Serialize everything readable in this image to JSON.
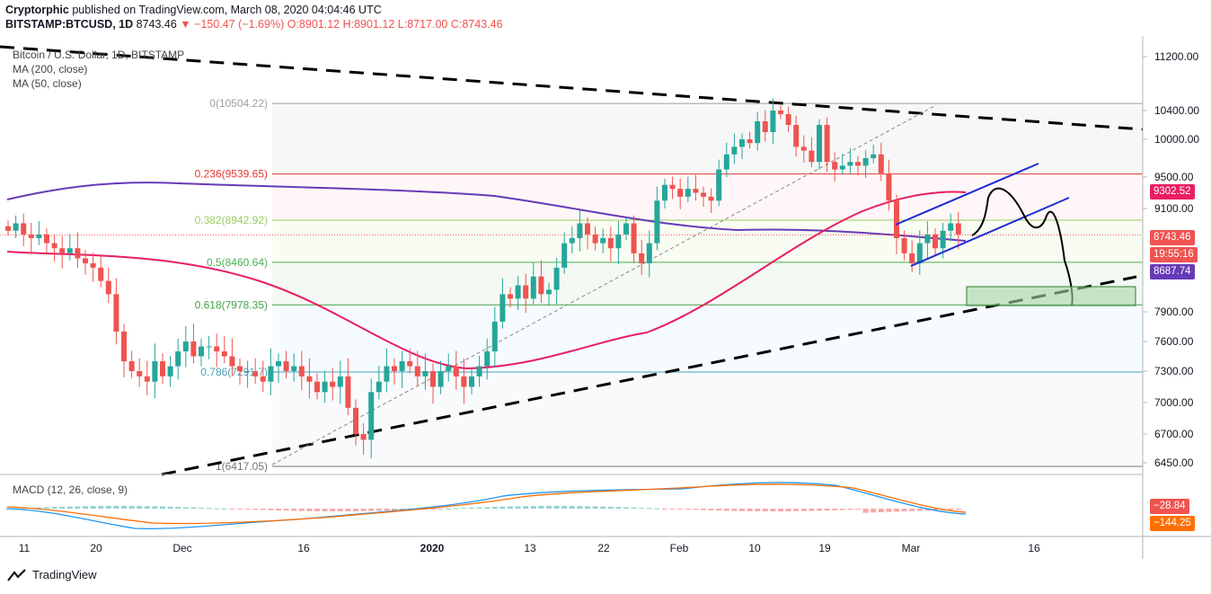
{
  "header": {
    "line1_author": "Cryptorphic",
    "line1_rest": " published on TradingView.com, March 08, 2020 04:04:46 UTC",
    "symbol": "BITSTAMP:BTCUSD, 1D",
    "last": "8743.46",
    "change": "−150.47 (−1.69%)",
    "open": "O:8901.12",
    "high": "H:8901.12",
    "low": "L:8717.00",
    "close": "C:8743.46"
  },
  "legend": {
    "title": "Bitcoin / U.S. Dollar, 1D, BITSTAMP",
    "ma200": "MA (200, close)",
    "ma50": "MA (50, close)"
  },
  "macd_label": "MACD (12, 26, close, 9)",
  "branding": "TradingView",
  "price_tags": {
    "ma50": "9302.52",
    "last": "8743.46",
    "countdown": "19:55:16",
    "ma200": "8687.74",
    "macd_hist": "−28.84",
    "macd_signal": "−144.25"
  },
  "colors": {
    "up": "#26a69a",
    "down": "#ef5350",
    "ma200": "#673ab7",
    "ma50": "#e91e63",
    "channel": "#1e2dd6",
    "target_zone": "#a5d6a7"
  },
  "chart_data": {
    "type": "candlestick",
    "symbol": "BTCUSD",
    "timeframe": "1D",
    "y_axis_ticks": [
      11200,
      10400,
      10000,
      9500,
      9100,
      7900,
      7600,
      7300,
      7000,
      6700,
      6450
    ],
    "x_axis_ticks": [
      "11",
      "20",
      "Dec",
      "16",
      "2020",
      "13",
      "22",
      "Feb",
      "10",
      "19",
      "Mar",
      "16"
    ],
    "fibonacci": [
      {
        "label": "0(10504.22)",
        "level": 0,
        "price": 10504.22,
        "color": "#9e9e9e"
      },
      {
        "label": "0.236(9539.65)",
        "level": 0.236,
        "price": 9539.65,
        "color": "#e53935"
      },
      {
        "label": "0.382(8942.92)",
        "level": 0.382,
        "price": 8942.92,
        "color": "#9ccc65"
      },
      {
        "label": "0.5(8460.64)",
        "level": 0.5,
        "price": 8460.64,
        "color": "#4caf50"
      },
      {
        "label": "0.618(7978.35)",
        "level": 0.618,
        "price": 7978.35,
        "color": "#43a047"
      },
      {
        "label": "0.786(7291.7)",
        "level": 0.786,
        "price": 7291.7,
        "color": "#4aa3b5"
      },
      {
        "label": "1(6417.05)",
        "level": 1,
        "price": 6417.05,
        "color": "#757575"
      }
    ],
    "candles_close_approx": [
      8800,
      8900,
      8750,
      8700,
      8750,
      8650,
      8600,
      8550,
      8600,
      8500,
      8450,
      8400,
      8250,
      8100,
      7700,
      7400,
      7300,
      7250,
      7200,
      7400,
      7250,
      7350,
      7500,
      7600,
      7450,
      7550,
      7550,
      7500,
      7450,
      7350,
      7300,
      7300,
      7250,
      7200,
      7350,
      7400,
      7300,
      7350,
      7250,
      7200,
      7100,
      7200,
      7150,
      7250,
      6950,
      6700,
      6650,
      7100,
      7200,
      7350,
      7300,
      7400,
      7350,
      7250,
      7300,
      7150,
      7300,
      7350,
      7250,
      7150,
      7250,
      7350,
      7500,
      7800,
      8100,
      8050,
      8200,
      8050,
      8300,
      8100,
      8150,
      8400,
      8650,
      8700,
      8900,
      8750,
      8650,
      8700,
      8600,
      8750,
      8900,
      8550,
      8450,
      8650,
      9200,
      9400,
      9350,
      9250,
      9350,
      9300,
      9250,
      9200,
      9600,
      9800,
      9900,
      10000,
      9950,
      10250,
      10100,
      10400,
      10350,
      10200,
      9900,
      9850,
      9700,
      10200,
      9700,
      9600,
      9650,
      9700,
      9650,
      9750,
      9800,
      9550,
      9200,
      8700,
      8550,
      8450,
      8650,
      8750,
      8600,
      8800,
      8900,
      8750
    ],
    "last_price": 8743.46,
    "ma50_last": 9302.52,
    "ma200_last": 8687.74,
    "macd": {
      "histogram_last": -28.84,
      "signal_last": -144.25
    }
  }
}
